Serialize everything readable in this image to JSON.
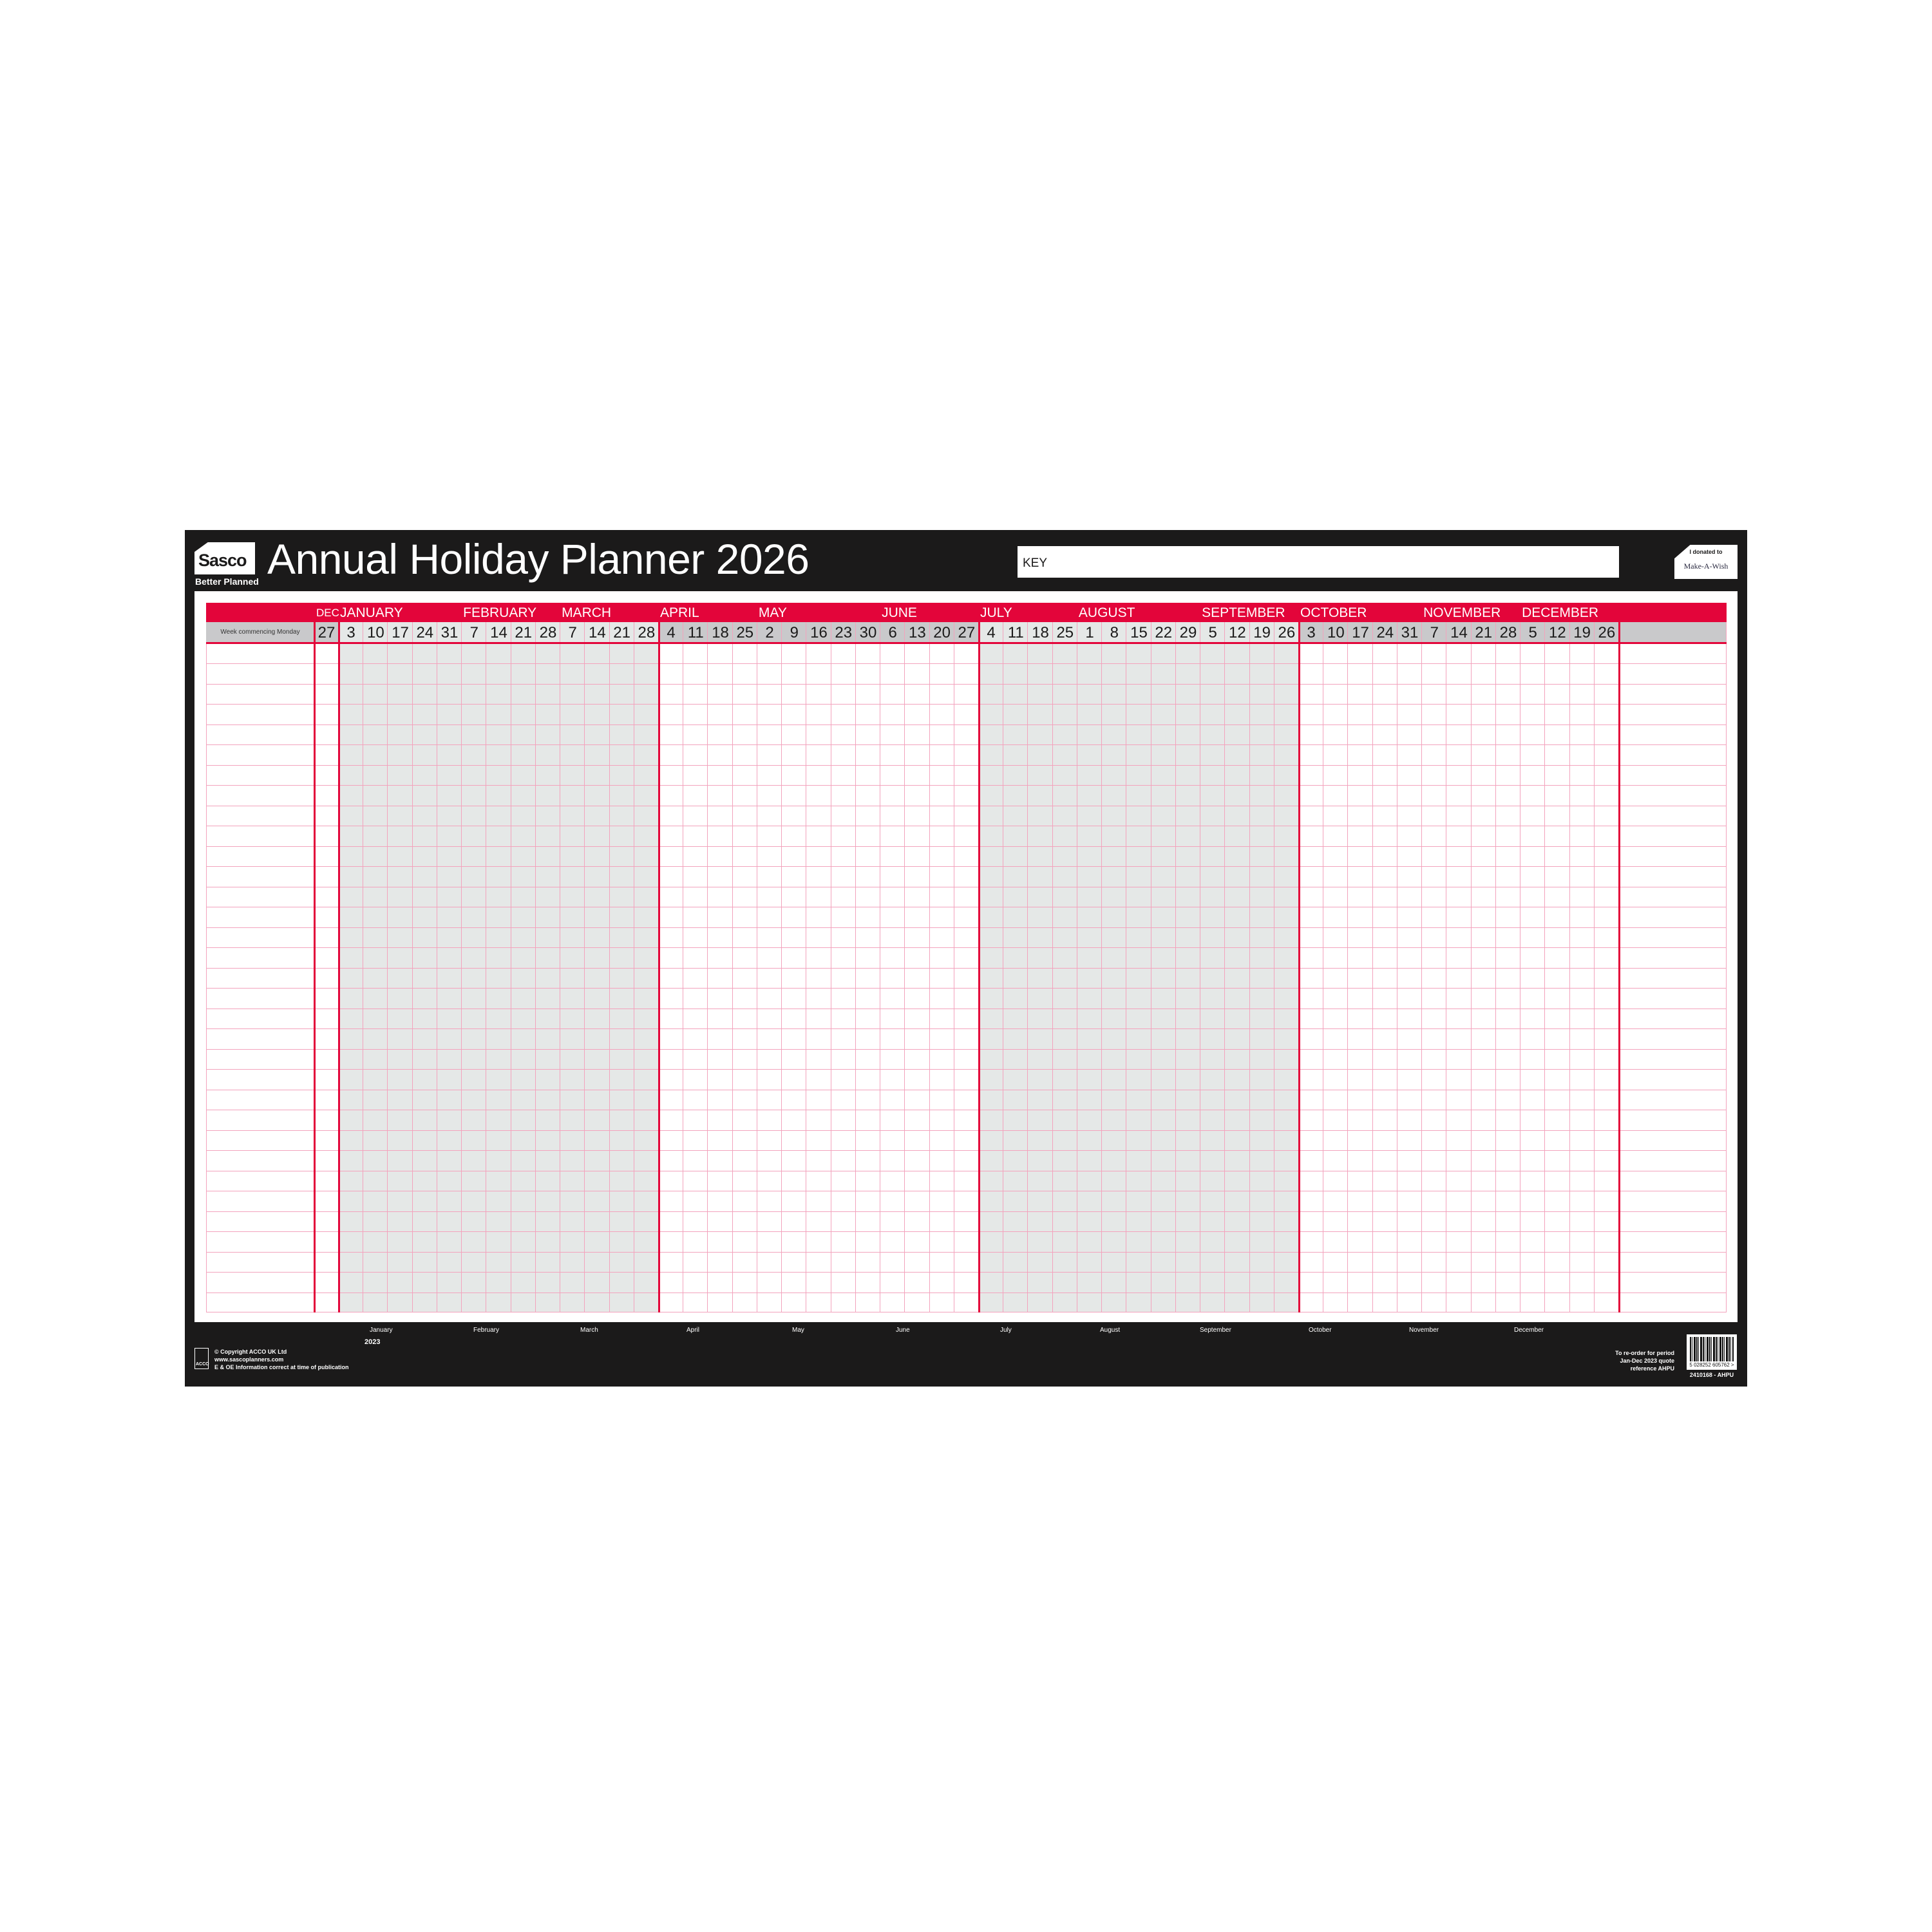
{
  "header": {
    "brand": "Sasco",
    "tagline": "Better Planned",
    "title": "Annual Holiday Planner 2026",
    "key_label": "KEY",
    "donation_text": "I donated to",
    "charity_logo": "Make-A-Wish"
  },
  "grid": {
    "row_header_label": "Week commencing Monday",
    "row_count": 33,
    "prev_month": {
      "label": "DEC",
      "weeks": [
        "27"
      ]
    },
    "months": [
      {
        "label": "JANUARY",
        "weeks": [
          "3",
          "10",
          "17",
          "24",
          "31"
        ],
        "shaded": true
      },
      {
        "label": "FEBRUARY",
        "weeks": [
          "7",
          "14",
          "21",
          "28"
        ],
        "shaded": true
      },
      {
        "label": "MARCH",
        "weeks": [
          "7",
          "14",
          "21",
          "28"
        ],
        "shaded": true
      },
      {
        "label": "APRIL",
        "weeks": [
          "4",
          "11",
          "18",
          "25"
        ],
        "shaded": false
      },
      {
        "label": "MAY",
        "weeks": [
          "2",
          "9",
          "16",
          "23",
          "30"
        ],
        "shaded": false
      },
      {
        "label": "JUNE",
        "weeks": [
          "6",
          "13",
          "20",
          "27"
        ],
        "shaded": false
      },
      {
        "label": "JULY",
        "weeks": [
          "4",
          "11",
          "18",
          "25"
        ],
        "shaded": true
      },
      {
        "label": "AUGUST",
        "weeks": [
          "1",
          "8",
          "15",
          "22",
          "29"
        ],
        "shaded": true
      },
      {
        "label": "SEPTEMBER",
        "weeks": [
          "5",
          "12",
          "19",
          "26"
        ],
        "shaded": true
      },
      {
        "label": "OCTOBER",
        "weeks": [
          "3",
          "10",
          "17",
          "24",
          "31"
        ],
        "shaded": false
      },
      {
        "label": "NOVEMBER",
        "weeks": [
          "7",
          "14",
          "21",
          "28"
        ],
        "shaded": false
      },
      {
        "label": "DECEMBER",
        "weeks": [
          "5",
          "12",
          "19",
          "26"
        ],
        "shaded": false
      }
    ],
    "colors": {
      "accent": "#e3053a",
      "grid_line": "#f3a3bd",
      "shade": "#e5e8e7",
      "header_grey": "#c9c9cb",
      "frame": "#1b1a1a"
    }
  },
  "footer": {
    "months": [
      "January",
      "February",
      "March",
      "April",
      "May",
      "June",
      "July",
      "August",
      "September",
      "October",
      "November",
      "December"
    ],
    "year": "2023",
    "copyright": "© Copyright ACCO UK Ltd",
    "website": "www.sascoplanners.com",
    "disclaimer": "E & OE Information correct at time of publication",
    "acco_logo": "ACCO",
    "reorder_lines": [
      "To re-order for period",
      "Jan-Dec 2023 quote",
      "reference AHPU"
    ],
    "barcode_number": "5 028252 605762 >",
    "barcode_ref": "2410168 - AHPU"
  }
}
